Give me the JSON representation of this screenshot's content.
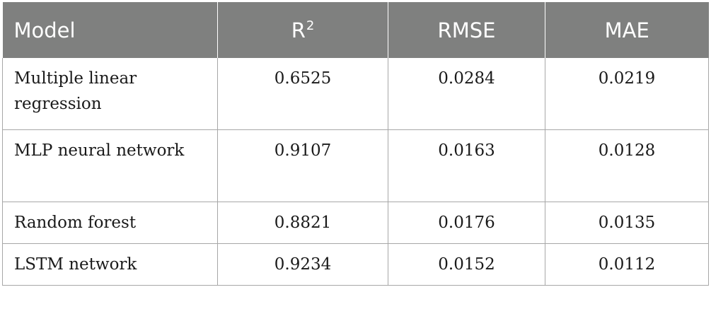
{
  "table": {
    "headers": {
      "model": "Model",
      "r2_base": "R",
      "r2_sup": "2",
      "rmse": "RMSE",
      "mae": "MAE"
    },
    "rows": [
      {
        "model": "Multiple linear regression",
        "r2": "0.6525",
        "rmse": "0.0284",
        "mae": "0.0219"
      },
      {
        "model": "MLP neural network",
        "r2": "0.9107",
        "rmse": "0.0163",
        "mae": "0.0128"
      },
      {
        "model": "Random forest",
        "r2": "0.8821",
        "rmse": "0.0176",
        "mae": "0.0135"
      },
      {
        "model": "LSTM network",
        "r2": "0.9234",
        "rmse": "0.0152",
        "mae": "0.0112"
      }
    ]
  },
  "colors": {
    "header_bg": "#7f807f",
    "header_text": "#ffffff",
    "grid": "#a7a7a7"
  }
}
